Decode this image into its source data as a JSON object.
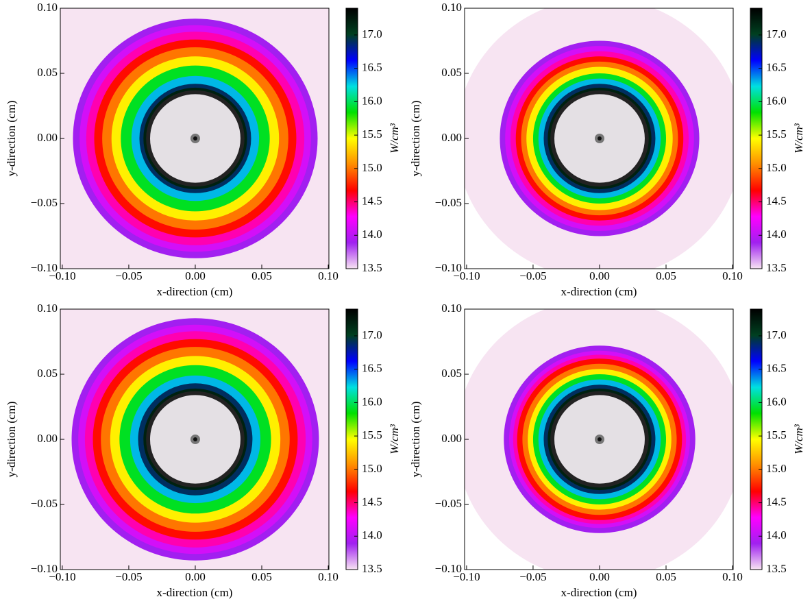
{
  "chart_data": [
    {
      "type": "radial-field",
      "xlabel": "x-direction (cm)",
      "ylabel": "y-direction (cm)",
      "colorbar_label": "W/cm³",
      "xlim": [
        -0.1015,
        0.1005
      ],
      "ylim": [
        -0.1,
        0.1
      ],
      "xticks": [
        {
          "value": -0.1,
          "label": "−0.10"
        },
        {
          "value": -0.05,
          "label": "−0.05"
        },
        {
          "value": 0,
          "label": "0.00"
        },
        {
          "value": 0.05,
          "label": "0.05"
        },
        {
          "value": 0.1,
          "label": "0.10"
        }
      ],
      "yticks": [
        {
          "value": -0.1,
          "label": "−0.10"
        },
        {
          "value": -0.05,
          "label": "−0.05"
        },
        {
          "value": 0,
          "label": "0.00"
        },
        {
          "value": 0.05,
          "label": "0.05"
        },
        {
          "value": 0.1,
          "label": "0.10"
        }
      ],
      "clim": [
        13.5,
        17.4
      ],
      "cticks": [
        13.5,
        {
          "value": 14,
          "label": "14.0"
        },
        14.5,
        {
          "value": 15,
          "label": "15.0"
        },
        15.5,
        {
          "value": 16,
          "label": "16.0"
        },
        16.5,
        {
          "value": 17,
          "label": "17.0"
        }
      ],
      "colormap": [
        "#f7e4f2",
        "#a020f0",
        "#ff00ff",
        "#ff0000",
        "#ff8c00",
        "#ffff00",
        "#00e000",
        "#00e0e0",
        "#0000ff",
        "#004020",
        "#000000"
      ],
      "radius": [
        0.15,
        0.092,
        0.087,
        0.082,
        0.076,
        0.07,
        0.063,
        0.056,
        0.048,
        0.042,
        0.039
      ],
      "values": [
        13.5,
        13.9,
        14.1,
        14.4,
        14.7,
        15.0,
        15.4,
        15.9,
        16.3,
        16.9,
        17.2
      ]
    },
    {
      "type": "radial-field",
      "xlabel": "x-direction (cm)",
      "ylabel": "y-direction (cm)",
      "colorbar_label": "W/cm³",
      "xlim": [
        -0.1015,
        0.1005
      ],
      "ylim": [
        -0.1,
        0.1
      ],
      "xticks": [
        {
          "value": -0.1,
          "label": "−0.10"
        },
        {
          "value": -0.05,
          "label": "−0.05"
        },
        {
          "value": 0,
          "label": "0.00"
        },
        {
          "value": 0.05,
          "label": "0.05"
        },
        {
          "value": 0.1,
          "label": "0.10"
        }
      ],
      "yticks": [
        {
          "value": -0.1,
          "label": "−0.10"
        },
        {
          "value": -0.05,
          "label": "−0.05"
        },
        {
          "value": 0,
          "label": "0.00"
        },
        {
          "value": 0.05,
          "label": "0.05"
        },
        {
          "value": 0.1,
          "label": "0.10"
        }
      ],
      "clim": [
        13.5,
        17.4
      ],
      "cticks": [
        13.5,
        {
          "value": 14,
          "label": "14.0"
        },
        14.5,
        {
          "value": 15,
          "label": "15.0"
        },
        15.5,
        {
          "value": 16,
          "label": "16.0"
        },
        16.5,
        {
          "value": 17,
          "label": "17.0"
        }
      ],
      "colormap": [
        "#f7e4f2",
        "#a020f0",
        "#ff00ff",
        "#ff0000",
        "#ff8c00",
        "#ffff00",
        "#00e000",
        "#00e0e0",
        "#0000ff",
        "#004020",
        "#000000"
      ],
      "radius": [
        0.108,
        0.075,
        0.071,
        0.067,
        0.063,
        0.059,
        0.055,
        0.05,
        0.046,
        0.042,
        0.039
      ],
      "values": [
        13.5,
        13.9,
        14.1,
        14.4,
        14.7,
        15.0,
        15.4,
        15.9,
        16.3,
        16.9,
        17.2
      ]
    },
    {
      "type": "radial-field",
      "xlabel": "x-direction (cm)",
      "ylabel": "y-direction (cm)",
      "colorbar_label": "W/cm³",
      "xlim": [
        -0.1015,
        0.1005
      ],
      "ylim": [
        -0.1,
        0.1
      ],
      "xticks": [
        {
          "value": -0.1,
          "label": "−0.10"
        },
        {
          "value": -0.05,
          "label": "−0.05"
        },
        {
          "value": 0,
          "label": "0.00"
        },
        {
          "value": 0.05,
          "label": "0.05"
        },
        {
          "value": 0.1,
          "label": "0.10"
        }
      ],
      "yticks": [
        {
          "value": -0.1,
          "label": "−0.10"
        },
        {
          "value": -0.05,
          "label": "−0.05"
        },
        {
          "value": 0,
          "label": "0.00"
        },
        {
          "value": 0.05,
          "label": "0.05"
        },
        {
          "value": 0.1,
          "label": "0.10"
        }
      ],
      "clim": [
        13.5,
        17.4
      ],
      "cticks": [
        13.5,
        {
          "value": 14,
          "label": "14.0"
        },
        14.5,
        {
          "value": 15,
          "label": "15.0"
        },
        15.5,
        {
          "value": 16,
          "label": "16.0"
        },
        16.5,
        {
          "value": 17,
          "label": "17.0"
        }
      ],
      "colormap": [
        "#f7e4f2",
        "#a020f0",
        "#ff00ff",
        "#ff0000",
        "#ff8c00",
        "#ffff00",
        "#00e000",
        "#00e0e0",
        "#0000ff",
        "#004020",
        "#000000"
      ],
      "radius": [
        0.15,
        0.093,
        0.088,
        0.083,
        0.077,
        0.071,
        0.064,
        0.057,
        0.049,
        0.043,
        0.039
      ],
      "values": [
        13.5,
        13.9,
        14.1,
        14.4,
        14.7,
        15.0,
        15.4,
        15.9,
        16.3,
        16.9,
        17.2
      ]
    },
    {
      "type": "radial-field",
      "xlabel": "x-direction (cm)",
      "ylabel": "y-direction (cm)",
      "colorbar_label": "W/cm³",
      "xlim": [
        -0.1015,
        0.1005
      ],
      "ylim": [
        -0.1,
        0.1
      ],
      "xticks": [
        {
          "value": -0.1,
          "label": "−0.10"
        },
        {
          "value": -0.05,
          "label": "−0.05"
        },
        {
          "value": 0,
          "label": "0.00"
        },
        {
          "value": 0.05,
          "label": "0.05"
        },
        {
          "value": 0.1,
          "label": "0.10"
        }
      ],
      "yticks": [
        {
          "value": -0.1,
          "label": "−0.10"
        },
        {
          "value": -0.05,
          "label": "−0.05"
        },
        {
          "value": 0,
          "label": "0.00"
        },
        {
          "value": 0.05,
          "label": "0.05"
        },
        {
          "value": 0.1,
          "label": "0.10"
        }
      ],
      "clim": [
        13.5,
        17.4
      ],
      "cticks": [
        13.5,
        {
          "value": 14,
          "label": "14.0"
        },
        14.5,
        {
          "value": 15,
          "label": "15.0"
        },
        15.5,
        {
          "value": 16,
          "label": "16.0"
        },
        16.5,
        {
          "value": 17,
          "label": "17.0"
        }
      ],
      "colormap": [
        "#f7e4f2",
        "#a020f0",
        "#ff00ff",
        "#ff0000",
        "#ff8c00",
        "#ffff00",
        "#00e000",
        "#00e0e0",
        "#0000ff",
        "#004020",
        "#000000"
      ],
      "radius": [
        0.108,
        0.072,
        0.068,
        0.065,
        0.062,
        0.058,
        0.054,
        0.05,
        0.046,
        0.042,
        0.039
      ],
      "values": [
        13.5,
        13.9,
        14.1,
        14.4,
        14.7,
        15.0,
        15.4,
        15.9,
        16.3,
        16.9,
        17.2
      ]
    }
  ]
}
